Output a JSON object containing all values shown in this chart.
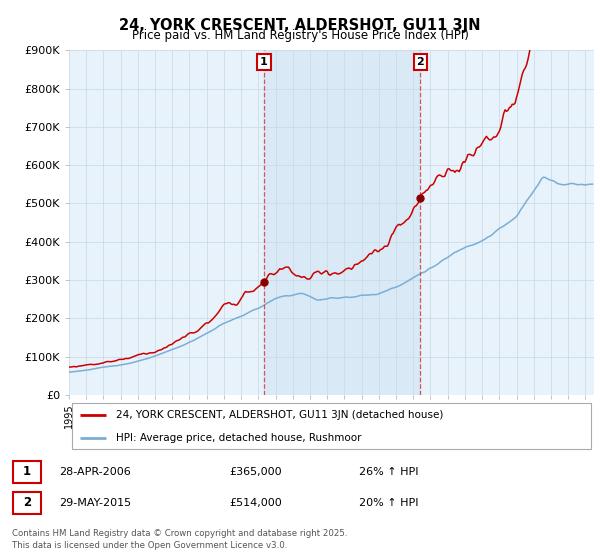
{
  "title": "24, YORK CRESCENT, ALDERSHOT, GU11 3JN",
  "subtitle": "Price paid vs. HM Land Registry's House Price Index (HPI)",
  "ylabel_ticks": [
    "£0",
    "£100K",
    "£200K",
    "£300K",
    "£400K",
    "£500K",
    "£600K",
    "£700K",
    "£800K",
    "£900K"
  ],
  "ylim": [
    0,
    900000
  ],
  "xlim_start": 1995.0,
  "xlim_end": 2025.5,
  "legend_line1": "24, YORK CRESCENT, ALDERSHOT, GU11 3JN (detached house)",
  "legend_line2": "HPI: Average price, detached house, Rushmoor",
  "marker1_x": 2006.32,
  "marker1_label": "1",
  "marker1_date": "28-APR-2006",
  "marker1_price": "£365,000",
  "marker1_pct": "26% ↑ HPI",
  "marker2_x": 2015.41,
  "marker2_label": "2",
  "marker2_date": "29-MAY-2015",
  "marker2_price": "£514,000",
  "marker2_pct": "20% ↑ HPI",
  "footnote": "Contains HM Land Registry data © Crown copyright and database right 2025.\nThis data is licensed under the Open Government Licence v3.0.",
  "line_color_red": "#cc0000",
  "line_color_blue": "#7aaed6",
  "fill_color": "#d6e8f5",
  "background_color": "#e8f2fa",
  "grid_color": "#c8d8e8",
  "marker_box_color": "#cc0000",
  "marker_dot_color": "#880000"
}
